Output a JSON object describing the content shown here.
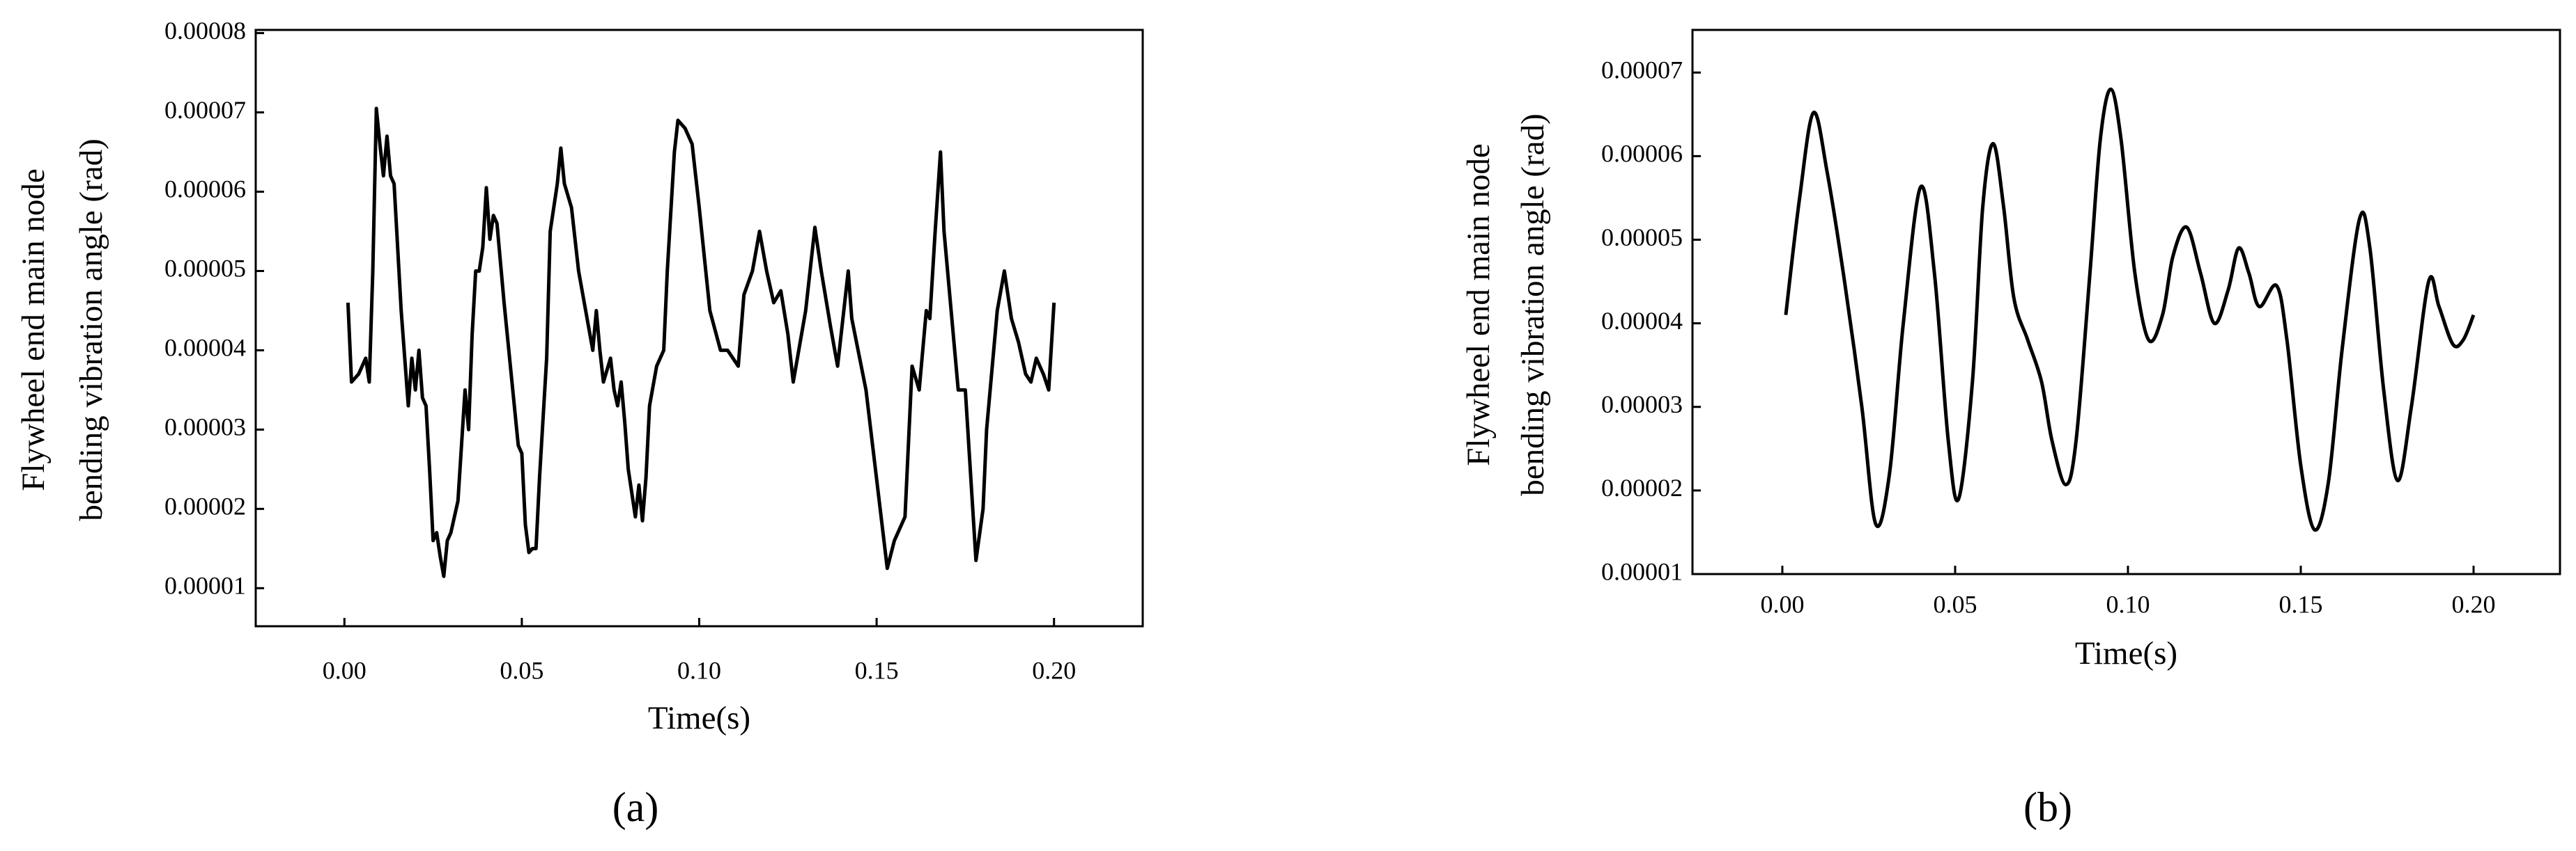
{
  "chart_data": [
    {
      "type": "line",
      "caption": "(a)",
      "xlabel": "Time(s)",
      "ylabel": [
        "Flywheel end main node",
        "bending vibration angle (rad)"
      ],
      "xlim": [
        -0.025,
        0.225
      ],
      "ylim": [
        5.2e-06,
        8.04e-05
      ],
      "xticks": [
        {
          "value": 0,
          "label": "0.00"
        },
        {
          "value": 0.05,
          "label": "0.05"
        },
        {
          "value": 0.1,
          "label": "0.10"
        },
        {
          "value": 0.15,
          "label": "0.15"
        },
        {
          "value": 0.2,
          "label": "0.20"
        }
      ],
      "yticks": [
        1e-05,
        2e-05,
        3e-05,
        4e-05,
        5e-05,
        6e-05,
        7e-05,
        8e-05
      ],
      "smooth": false,
      "series": [
        {
          "color": "#000000",
          "x": [
            0.001,
            0.002,
            0.004,
            0.006,
            0.007,
            0.008,
            0.009,
            0.01,
            0.011,
            0.012,
            0.013,
            0.014,
            0.016,
            0.018,
            0.019,
            0.02,
            0.021,
            0.022,
            0.023,
            0.024,
            0.025,
            0.026,
            0.027,
            0.028,
            0.029,
            0.03,
            0.032,
            0.034,
            0.035,
            0.036,
            0.037,
            0.038,
            0.039,
            0.04,
            0.041,
            0.042,
            0.043,
            0.045,
            0.047,
            0.049,
            0.05,
            0.051,
            0.052,
            0.053,
            0.054,
            0.055,
            0.057,
            0.058,
            0.06,
            0.061,
            0.062,
            0.064,
            0.066,
            0.068,
            0.07,
            0.071,
            0.072,
            0.073,
            0.075,
            0.076,
            0.077,
            0.078,
            0.079,
            0.08,
            0.081,
            0.082,
            0.083,
            0.084,
            0.085,
            0.086,
            0.088,
            0.09,
            0.091,
            0.093,
            0.094,
            0.096,
            0.098,
            0.1,
            0.103,
            0.106,
            0.108,
            0.111,
            0.1126,
            0.115,
            0.117,
            0.119,
            0.121,
            0.123,
            0.125,
            0.1265,
            0.13,
            0.1326,
            0.1344,
            0.137,
            0.139,
            0.141,
            0.142,
            0.143,
            0.147,
            0.151,
            0.153,
            0.155,
            0.158,
            0.16,
            0.162,
            0.164,
            0.165,
            0.1665,
            0.168,
            0.169,
            0.171,
            0.173,
            0.175,
            0.178,
            0.18,
            0.181,
            0.184,
            0.186,
            0.188,
            0.19,
            0.192,
            0.1935,
            0.195,
            0.197,
            0.1985,
            0.2
          ],
          "values": [
            4.6e-05,
            3.6e-05,
            3.7e-05,
            3.9e-05,
            3.6e-05,
            5e-05,
            7.05e-05,
            6.6e-05,
            6.2e-05,
            6.7e-05,
            6.2e-05,
            6.1e-05,
            4.5e-05,
            3.3e-05,
            3.9e-05,
            3.5e-05,
            4e-05,
            3.4e-05,
            3.3e-05,
            2.5e-05,
            1.6e-05,
            1.7e-05,
            1.4e-05,
            1.15e-05,
            1.6e-05,
            1.7e-05,
            2.1e-05,
            3.5e-05,
            3e-05,
            4.2e-05,
            5e-05,
            5e-05,
            5.3e-05,
            6.05e-05,
            5.4e-05,
            5.7e-05,
            5.6e-05,
            4.6e-05,
            3.7e-05,
            2.8e-05,
            2.7e-05,
            1.8e-05,
            1.45e-05,
            1.5e-05,
            1.5e-05,
            2.4e-05,
            3.9e-05,
            5.5e-05,
            6.1e-05,
            6.55e-05,
            6.1e-05,
            5.8e-05,
            5e-05,
            4.5e-05,
            4e-05,
            4.5e-05,
            4e-05,
            3.6e-05,
            3.9e-05,
            3.5e-05,
            3.3e-05,
            3.6e-05,
            3.1e-05,
            2.5e-05,
            2.2e-05,
            1.9e-05,
            2.3e-05,
            1.85e-05,
            2.4e-05,
            3.3e-05,
            3.8e-05,
            4e-05,
            5e-05,
            6.5e-05,
            6.9e-05,
            6.8e-05,
            6.6e-05,
            5.8e-05,
            4.5e-05,
            4e-05,
            4e-05,
            3.8e-05,
            4.7e-05,
            5e-05,
            5.5e-05,
            5e-05,
            4.6e-05,
            4.75e-05,
            4.2e-05,
            3.6e-05,
            4.5e-05,
            5.55e-05,
            5e-05,
            4.3e-05,
            3.8e-05,
            4.6e-05,
            5e-05,
            4.4e-05,
            3.5e-05,
            2e-05,
            1.25e-05,
            1.6e-05,
            1.9e-05,
            3.8e-05,
            3.5e-05,
            4.5e-05,
            4.4e-05,
            5.5e-05,
            6.5e-05,
            5.5e-05,
            4.5e-05,
            3.5e-05,
            3.5e-05,
            1.35e-05,
            2e-05,
            3e-05,
            4.5e-05,
            5e-05,
            4.4e-05,
            4.1e-05,
            3.7e-05,
            3.6e-05,
            3.9e-05,
            3.7e-05,
            3.5e-05,
            4.6e-05
          ]
        }
      ]
    },
    {
      "type": "line",
      "caption": "(b)",
      "xlabel": "Time(s)",
      "ylabel": [
        "Flywheel end main node",
        "bending vibration angle (rad)"
      ],
      "xlim": [
        -0.026,
        0.225
      ],
      "ylim": [
        1e-05,
        7.51e-05
      ],
      "xticks": [
        {
          "value": 0,
          "label": "0.00"
        },
        {
          "value": 0.05,
          "label": "0.05"
        },
        {
          "value": 0.1,
          "label": "0.10"
        },
        {
          "value": 0.15,
          "label": "0.15"
        },
        {
          "value": 0.2,
          "label": "0.20"
        }
      ],
      "yticks": [
        1e-05,
        2e-05,
        3e-05,
        4e-05,
        5e-05,
        6e-05,
        7e-05
      ],
      "smooth": true,
      "series": [
        {
          "color": "#000000",
          "x": [
            0.001,
            0.005,
            0.009,
            0.013,
            0.018,
            0.023,
            0.027,
            0.031,
            0.035,
            0.04,
            0.044,
            0.048,
            0.051,
            0.055,
            0.058,
            0.061,
            0.064,
            0.067,
            0.071,
            0.075,
            0.078,
            0.082,
            0.085,
            0.089,
            0.092,
            0.095,
            0.098,
            0.102,
            0.106,
            0.11,
            0.113,
            0.117,
            0.121,
            0.125,
            0.129,
            0.132,
            0.135,
            0.138,
            0.143,
            0.146,
            0.15,
            0.154,
            0.158,
            0.162,
            0.167,
            0.17,
            0.174,
            0.178,
            0.182,
            0.187,
            0.19,
            0.194,
            0.197,
            0.2
          ],
          "values": [
            4.1e-05,
            5.5e-05,
            6.52e-05,
            5.8e-05,
            4.5e-05,
            3e-05,
            1.6e-05,
            2.2e-05,
            4e-05,
            5.63e-05,
            4.6e-05,
            2.6e-05,
            1.9e-05,
            3.3e-05,
            5.4e-05,
            6.15e-05,
            5.4e-05,
            4.3e-05,
            3.8e-05,
            3.3e-05,
            2.6e-05,
            2.07e-05,
            2.6e-05,
            4.6e-05,
            6.2e-05,
            6.8e-05,
            6.2e-05,
            4.6e-05,
            3.8e-05,
            4.1e-05,
            4.8e-05,
            5.15e-05,
            4.6e-05,
            4e-05,
            4.4e-05,
            4.9e-05,
            4.6e-05,
            4.2e-05,
            4.45e-05,
            3.8e-05,
            2.3e-05,
            1.53e-05,
            2.1e-05,
            3.7e-05,
            5.25e-05,
            4.9e-05,
            3.2e-05,
            2.12e-05,
            3e-05,
            4.5e-05,
            4.2e-05,
            3.75e-05,
            3.8e-05,
            4.1e-05
          ]
        }
      ]
    }
  ]
}
